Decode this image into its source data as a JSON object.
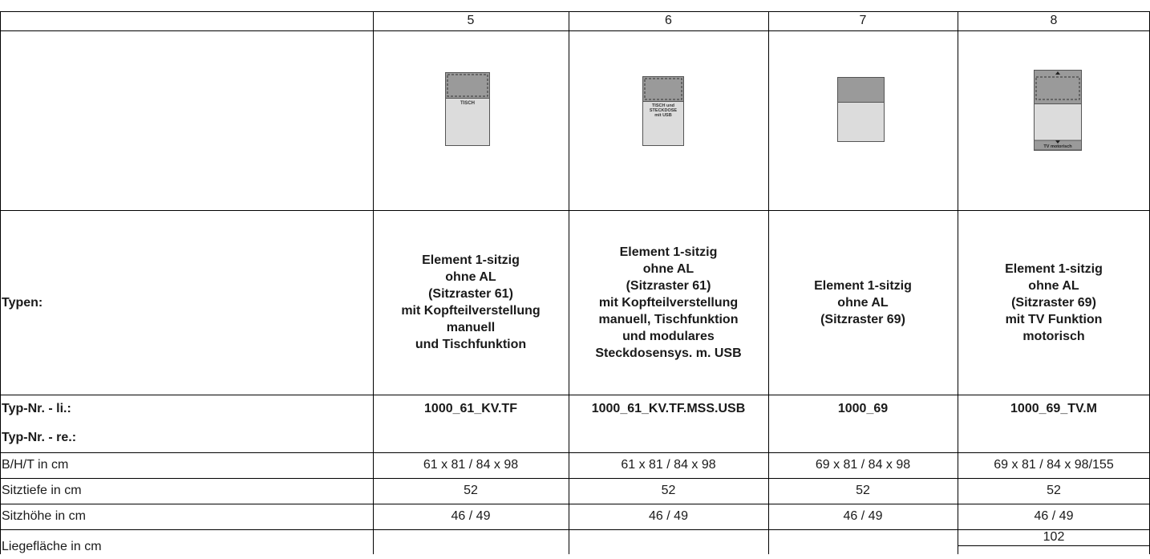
{
  "columns": [
    "5",
    "6",
    "7",
    "8"
  ],
  "images": [
    {
      "icon": "element-with-table-icon",
      "caption": "TISCH",
      "caption_lines": [
        "TISCH"
      ]
    },
    {
      "icon": "element-with-table-socket-icon",
      "caption_lines": [
        "TISCH und",
        "STECKDOSE",
        "mit USB"
      ]
    },
    {
      "icon": "element-plain-icon",
      "caption_lines": []
    },
    {
      "icon": "element-tv-motor-icon",
      "caption_lines": [
        "TV motorisch"
      ]
    }
  ],
  "types_label": "Typen:",
  "types": [
    "Element 1-sitzig\nohne AL\n(Sitzraster 61)\nmit Kopfteilverstellung\nmanuell\nund Tischfunktion",
    "Element 1-sitzig\nohne AL\n(Sitzraster 61)\nmit Kopfteilverstellung\nmanuell, Tischfunktion\nund modulares\nSteckdosensys. m. USB",
    "Element 1-sitzig\nohne AL\n(Sitzraster 69)",
    "Element 1-sitzig\nohne AL\n(Sitzraster 69)\nmit TV Funktion\nmotorisch"
  ],
  "typnr_li_label": "Typ-Nr. - li.:",
  "typnr_re_label": "Typ-Nr. - re.:",
  "typnr": [
    "1000_61_KV.TF",
    "1000_61_KV.TF.MSS.USB",
    "1000_69",
    "1000_69_TV.M"
  ],
  "rows": [
    {
      "label": "B/H/T in cm",
      "values": [
        "61 x 81 / 84 x 98",
        "61 x 81 / 84 x 98",
        "69 x 81 / 84 x 98",
        "69 x 81 / 84 x 98/155"
      ]
    },
    {
      "label": "Sitztiefe in cm",
      "values": [
        "52",
        "52",
        "52",
        "52"
      ]
    },
    {
      "label": "Sitzhöhe in cm",
      "values": [
        "46 / 49",
        "46 / 49",
        "46 / 49",
        "46 / 49"
      ]
    },
    {
      "label": "Liegefläche in cm",
      "values": [
        "",
        "",
        "",
        "102"
      ]
    }
  ]
}
